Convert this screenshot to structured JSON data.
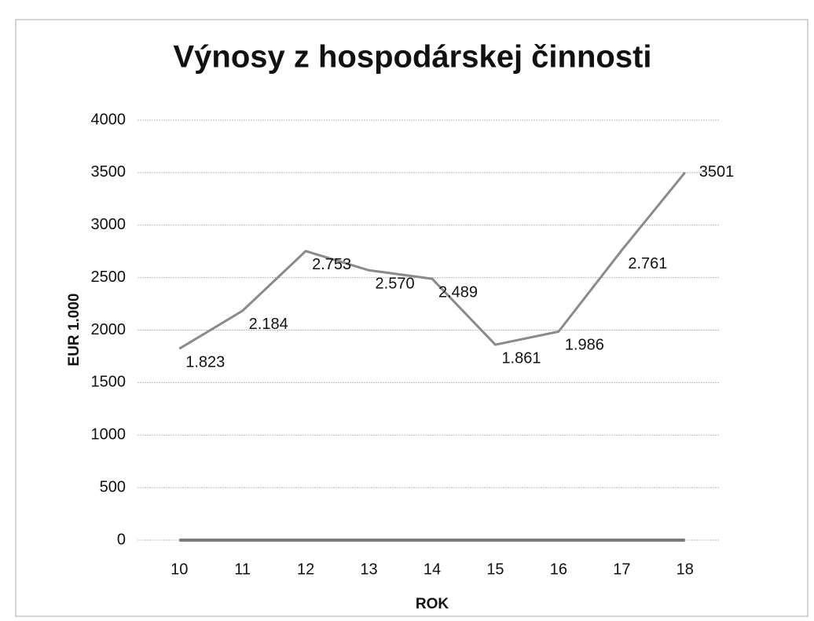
{
  "chart_data": {
    "type": "line",
    "title": "Výnosy z hospodárskej činnosti",
    "xlabel": "ROK",
    "ylabel": "EUR 1.000",
    "categories": [
      "10",
      "11",
      "12",
      "13",
      "14",
      "15",
      "16",
      "17",
      "18"
    ],
    "series": [
      {
        "color": "#8a8a8a",
        "values": [
          1823,
          2184,
          2753,
          2570,
          2489,
          1861,
          1986,
          2761,
          3501
        ],
        "value_labels": [
          "1.823",
          "2.184",
          "2.753",
          "2.570",
          "2.489",
          "1.861",
          "1.986",
          "2.761",
          "3501"
        ]
      },
      {
        "color": "#7a7a7a",
        "values": [
          0,
          0,
          0,
          0,
          0,
          0,
          0,
          0,
          0
        ]
      }
    ],
    "ylim": [
      0,
      4000
    ],
    "yticks": [
      0,
      500,
      1000,
      1500,
      2000,
      2500,
      3000,
      3500,
      4000
    ],
    "grid": true
  }
}
